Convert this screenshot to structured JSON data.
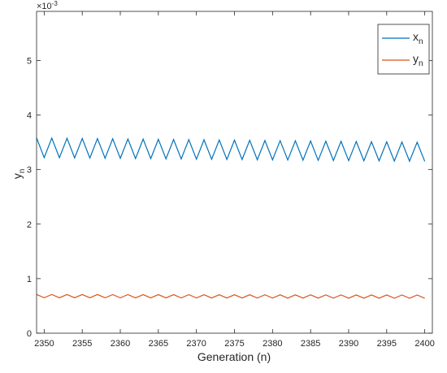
{
  "chart_data": {
    "type": "line",
    "xlabel": "Generation (n)",
    "ylabel_base": "y",
    "ylabel_sub": "n",
    "xlim": [
      2349,
      2401
    ],
    "ylim": [
      0,
      0.0059
    ],
    "x_ticks": [
      2350,
      2355,
      2360,
      2365,
      2370,
      2375,
      2380,
      2385,
      2390,
      2395,
      2400
    ],
    "y_ticks": [
      0,
      0.001,
      0.002,
      0.003,
      0.004,
      0.005
    ],
    "y_tick_labels": [
      "0",
      "1",
      "2",
      "3",
      "4",
      "5"
    ],
    "y_exponent_base": "×10",
    "y_exponent_power": "-3",
    "grid": false,
    "legend_position": "top-right",
    "series": [
      {
        "name_base": "x",
        "name_sub": "n",
        "color": "#0072BD",
        "x_start": 2349,
        "x_end": 2400,
        "alternating": true,
        "high_start": 0.00358,
        "high_end": 0.0035,
        "low_start": 0.00322,
        "low_end": 0.00315
      },
      {
        "name_base": "y",
        "name_sub": "n",
        "color": "#D95319",
        "x_start": 2349,
        "x_end": 2400,
        "alternating": true,
        "high_start": 0.00071,
        "high_end": 0.0007,
        "low_start": 0.00065,
        "low_end": 0.00064
      }
    ]
  }
}
